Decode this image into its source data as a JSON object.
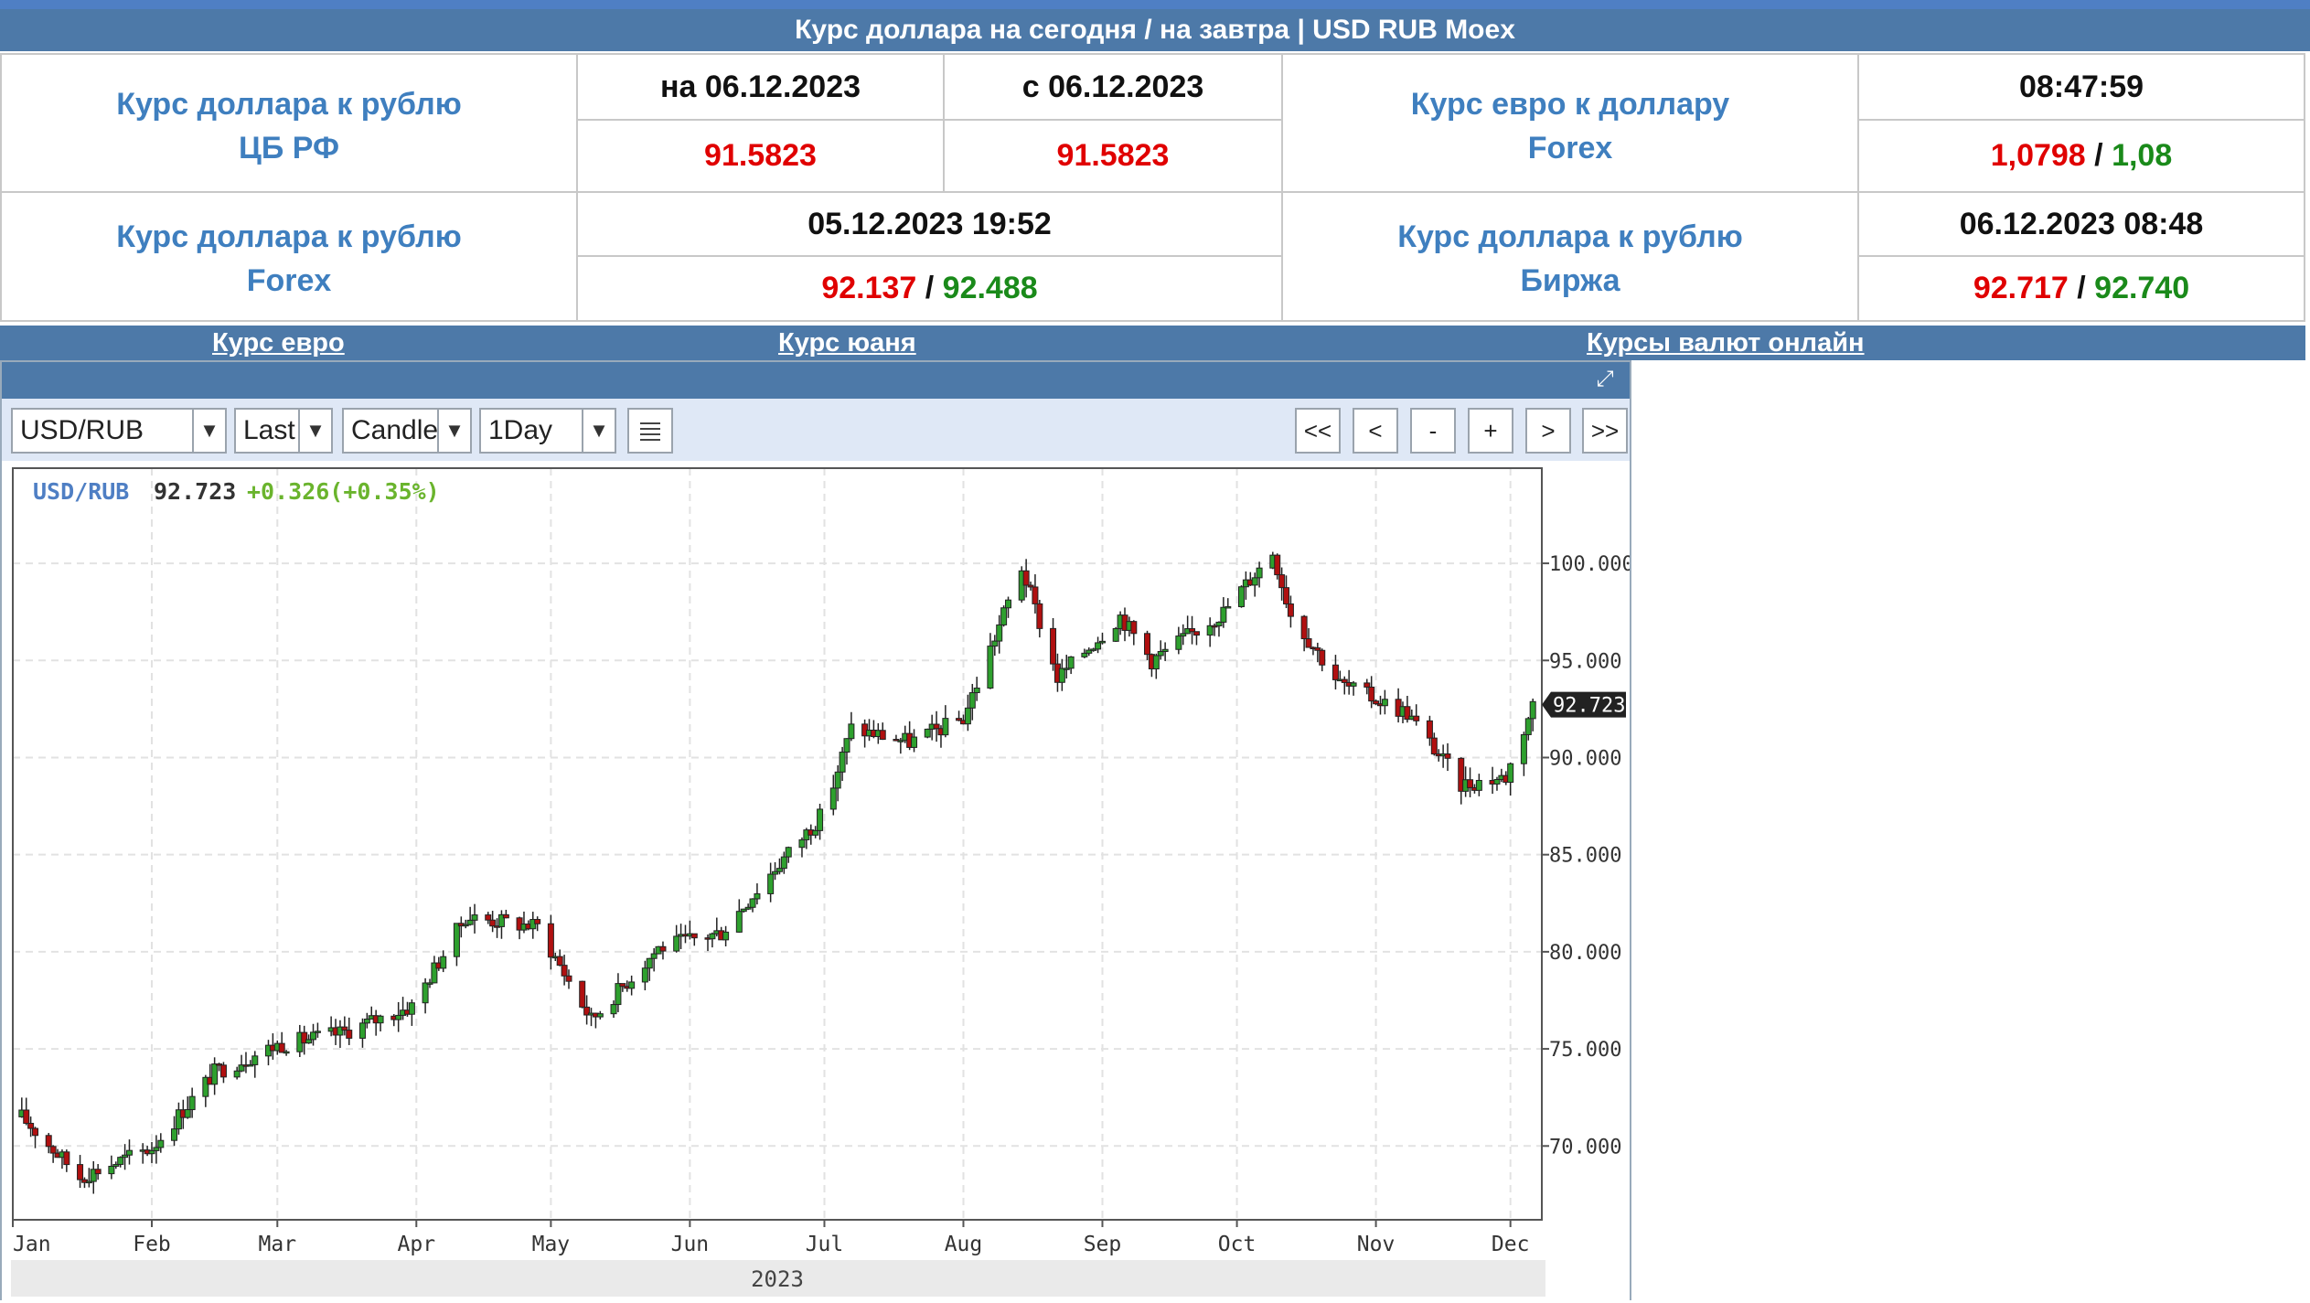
{
  "title": "Курс доллара на сегодня / на завтра | USD RUB Moex",
  "cbr": {
    "label_line1": "Курс доллара к рублю",
    "label_line2": "ЦБ РФ",
    "date1": "на 06.12.2023",
    "date2": "с 06.12.2023",
    "value1": "91.5823",
    "value2": "91.5823"
  },
  "eur_usd": {
    "label_line1": "Курс евро к доллару",
    "label_line2": "Forex",
    "time": "08:47:59",
    "bid": "1,0798",
    "sep": "/",
    "ask": "1,08"
  },
  "usd_forex": {
    "label_line1": "Курс доллара к рублю",
    "label_line2": "Forex",
    "datetime": "05.12.2023 19:52",
    "bid": "92.137",
    "sep": "/",
    "ask": "92.488"
  },
  "usd_exchange": {
    "label_line1": "Курс доллара к рублю",
    "label_line2": "Биржа",
    "datetime": "06.12.2023 08:48",
    "bid": "92.717",
    "sep": "/",
    "ask": "92.740"
  },
  "links": {
    "euro": "Курс евро",
    "yuan": "Курс юаня",
    "online": "Курсы валют онлайн"
  },
  "toolbar": {
    "symbol": "USD/RUB",
    "price_type": "Last",
    "chart_type": "Candle",
    "interval": "1Day",
    "nav": [
      "<<",
      "<",
      "-",
      "+",
      ">",
      ">>"
    ]
  },
  "colors": {
    "header_bg": "#4d79a8",
    "label_blue": "#3f7fbf",
    "down_red": "#e00000",
    "up_green": "#1a8a1a",
    "candle_up": "#2ea02e",
    "candle_down": "#b01010"
  },
  "chart_data": {
    "type": "candlestick",
    "symbol_label": "USD/RUB",
    "last": "92.723",
    "change": "+0.326(+0.35%)",
    "last_tag": "92.723",
    "year_label": "2023",
    "x_months": [
      "Jan",
      "Feb",
      "Mar",
      "Apr",
      "May",
      "Jun",
      "Jul",
      "Aug",
      "Sep",
      "Oct",
      "Nov",
      "Dec"
    ],
    "y_ticks": [
      "100.000",
      "95.000",
      "90.000",
      "85.000",
      "80.000",
      "75.000",
      "70.000"
    ],
    "ylim": [
      66.2,
      104.9
    ],
    "grid": true,
    "series": [
      {
        "date": "2023-01-03",
        "value": 71.5
      },
      {
        "date": "2023-01-16",
        "value": 68.4
      },
      {
        "date": "2023-02-01",
        "value": 69.9
      },
      {
        "date": "2023-02-15",
        "value": 73.8
      },
      {
        "date": "2023-03-01",
        "value": 75.2
      },
      {
        "date": "2023-03-15",
        "value": 75.8
      },
      {
        "date": "2023-03-31",
        "value": 77.2
      },
      {
        "date": "2023-04-12",
        "value": 81.8
      },
      {
        "date": "2023-04-28",
        "value": 81.3
      },
      {
        "date": "2023-05-10",
        "value": 76.5
      },
      {
        "date": "2023-05-25",
        "value": 80.2
      },
      {
        "date": "2023-06-08",
        "value": 81.0
      },
      {
        "date": "2023-06-20",
        "value": 84.3
      },
      {
        "date": "2023-07-01",
        "value": 87.2
      },
      {
        "date": "2023-07-07",
        "value": 91.5
      },
      {
        "date": "2023-07-20",
        "value": 90.8
      },
      {
        "date": "2023-08-01",
        "value": 92.0
      },
      {
        "date": "2023-08-14",
        "value": 99.8
      },
      {
        "date": "2023-08-22",
        "value": 94.1
      },
      {
        "date": "2023-09-05",
        "value": 97.3
      },
      {
        "date": "2023-09-12",
        "value": 95.0
      },
      {
        "date": "2023-09-28",
        "value": 97.5
      },
      {
        "date": "2023-10-09",
        "value": 100.6
      },
      {
        "date": "2023-10-13",
        "value": 97.4
      },
      {
        "date": "2023-10-24",
        "value": 93.8
      },
      {
        "date": "2023-11-08",
        "value": 92.3
      },
      {
        "date": "2023-11-20",
        "value": 88.6
      },
      {
        "date": "2023-11-30",
        "value": 89.0
      },
      {
        "date": "2023-12-06",
        "value": 92.723
      }
    ]
  }
}
